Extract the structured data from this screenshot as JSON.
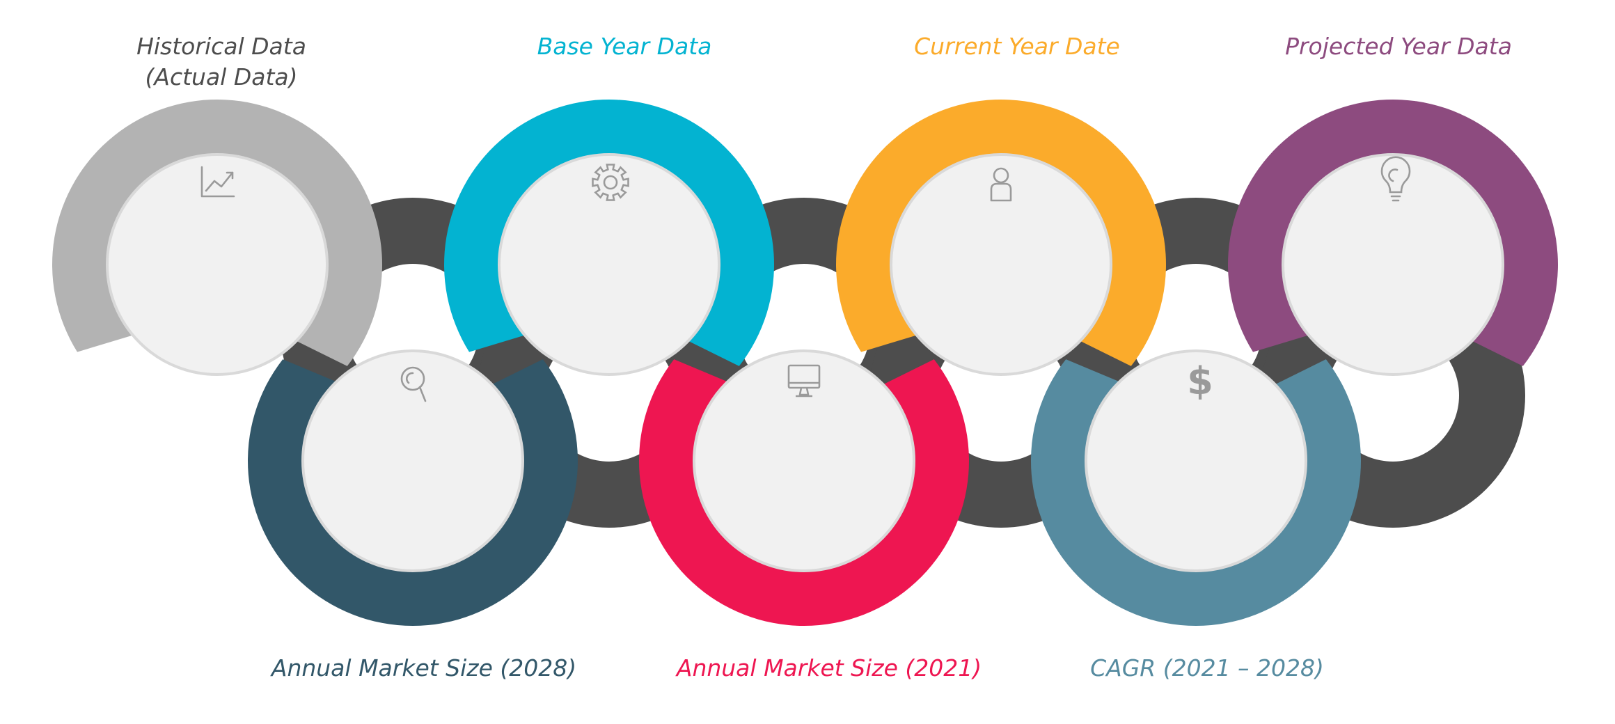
{
  "colors": {
    "link": "#4d4d4d",
    "inner_fill": "#f1f1f1",
    "icon": "#9a9a9a"
  },
  "top_items": [
    {
      "title_line1": "Historical Data",
      "title_line2": "(Actual Data)",
      "color": "#b3b3b3",
      "text_color": "#4d4d4d",
      "icon": "chart-line-icon"
    },
    {
      "title_line1": "Base Year Data",
      "title_line2": "",
      "color": "#03b3d1",
      "text_color": "#03b3d1",
      "icon": "gear-icon"
    },
    {
      "title_line1": "Current Year Date",
      "title_line2": "",
      "color": "#fbab2b",
      "text_color": "#fbab2b",
      "icon": "user-icon"
    },
    {
      "title_line1": "Projected Year Data",
      "title_line2": "",
      "color": "#8d4b7f",
      "text_color": "#8d4b7f",
      "icon": "lightbulb-icon"
    }
  ],
  "bottom_items": [
    {
      "title": "Annual Market Size (2028)",
      "color": "#325769",
      "text_color": "#325769",
      "icon": "magnifier-icon"
    },
    {
      "title": "Annual Market Size (2021)",
      "color": "#ee1651",
      "text_color": "#ee1651",
      "icon": "monitor-icon"
    },
    {
      "title": "CAGR (2021 – 2028)",
      "color": "#568ba0",
      "text_color": "#568ba0",
      "icon": "dollar-icon"
    }
  ]
}
